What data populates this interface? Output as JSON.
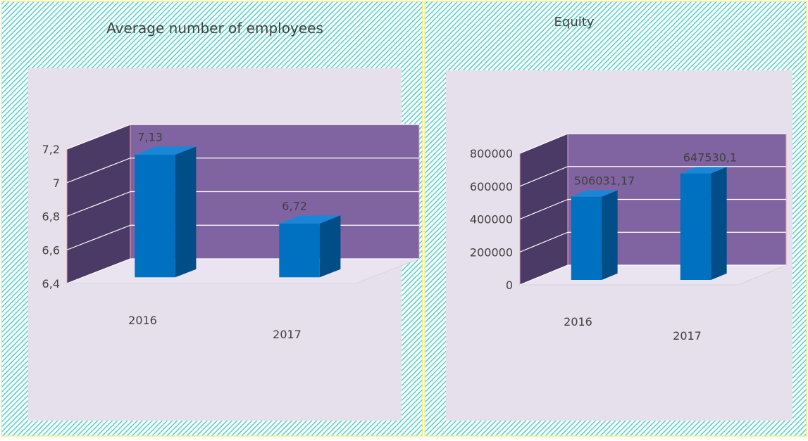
{
  "chart_data": [
    {
      "type": "bar3d",
      "title": "Average number of employees",
      "categories": [
        "2016",
        "2017"
      ],
      "values": [
        7.13,
        6.72
      ],
      "value_labels": [
        "7,13",
        "6,72"
      ],
      "color": "#0070c0",
      "ylim": [
        6.4,
        7.2
      ],
      "yticks": [
        {
          "value": 6.4,
          "label": "6,4"
        },
        {
          "value": 6.6,
          "label": "6,6"
        },
        {
          "value": 6.8,
          "label": "6,8"
        },
        7,
        {
          "value": 7.2,
          "label": "7,2"
        }
      ],
      "grid": true
    },
    {
      "type": "bar3d",
      "title": "Equity",
      "categories": [
        "2016",
        "2017"
      ],
      "values": [
        506031.17,
        647530.1
      ],
      "value_labels": [
        "506031,17",
        "647530,1"
      ],
      "color": "#0070c0",
      "ylim": [
        0,
        800000
      ],
      "yticks": [
        0,
        200000,
        400000,
        600000,
        800000
      ],
      "grid": true
    }
  ]
}
